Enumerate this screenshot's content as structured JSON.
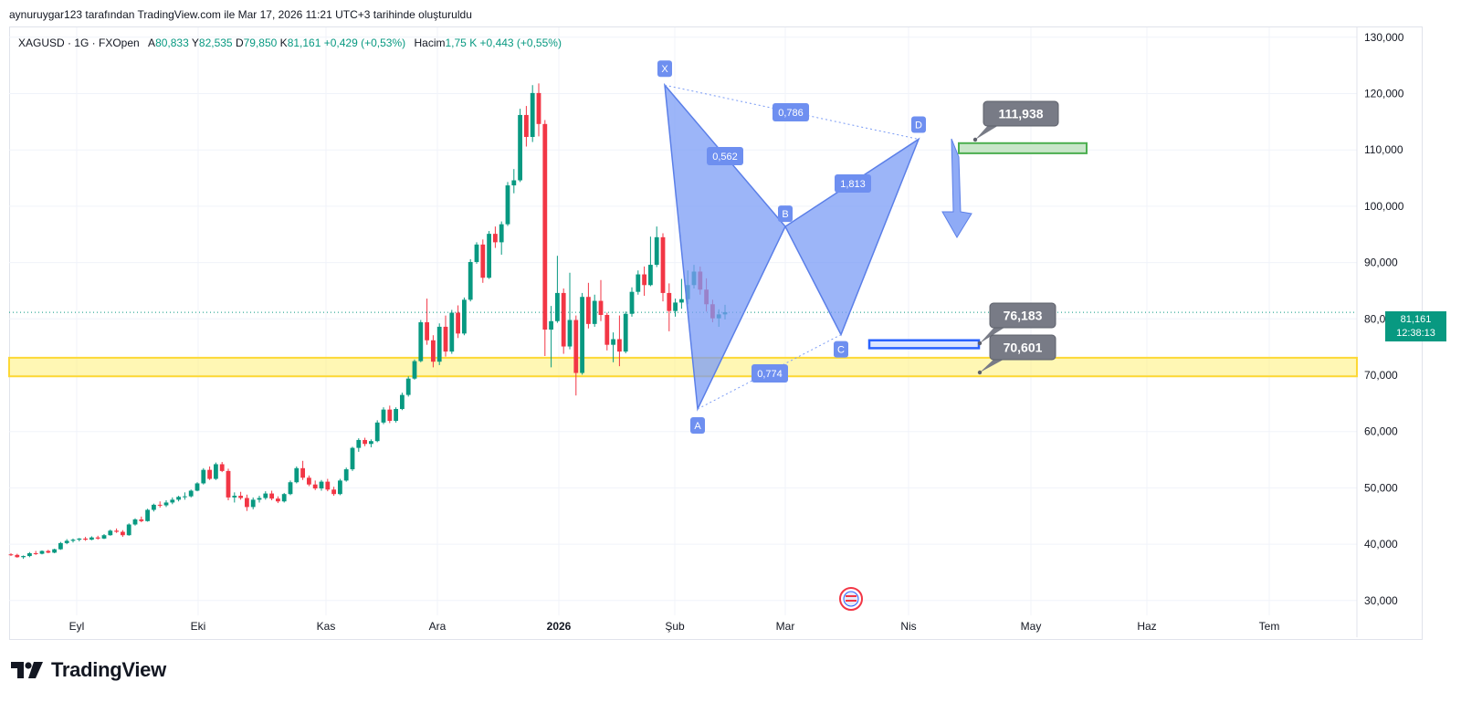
{
  "attribution": "aynuruygar123 tarafından TradingView.com ile Mar 17, 2026 11:21 UTC+3 tarihinde oluşturuldu",
  "legend": {
    "symbol": "XAGUSD · 1G · FXOpen",
    "open_label": "A",
    "open": "80,833",
    "high_label": "Y",
    "high": "82,535",
    "low_label": "D",
    "low": "79,850",
    "close_label": "K",
    "close": "81,161",
    "change": "+0,429 (+0,53%)",
    "volume_label": "Hacim",
    "volume": "1,75 K",
    "volume_change": "+0,443 (+0,55%)"
  },
  "last_price": {
    "value": "81,161",
    "countdown": "12:38:13"
  },
  "brand": "TradingView",
  "colors": {
    "up": "#089981",
    "down": "#f23645",
    "pattern": "#7b9cf5",
    "support_zone": "#fff176",
    "target_zone": "#c8e6c9",
    "price_badge": "#089981"
  },
  "chart_data": {
    "type": "candlestick",
    "title": "XAGUSD · 1G · FXOpen",
    "ylim": [
      27,
      132
    ],
    "y_ticks": [
      "130,000",
      "120,000",
      "110,000",
      "100,000",
      "90,000",
      "80,000",
      "70,000",
      "60,000",
      "50,000",
      "40,000",
      "30,000"
    ],
    "y_tick_values": [
      130,
      120,
      110,
      100,
      90,
      80,
      70,
      60,
      50,
      40,
      30
    ],
    "x_labels": [
      "Eyl",
      "Eki",
      "Kas",
      "Ara",
      "2026",
      "Şub",
      "Mar",
      "Nis",
      "May",
      "Haz",
      "Tem"
    ],
    "x_label_bold": [
      "2026"
    ],
    "candles": [
      [
        38.2,
        38.4,
        37.9,
        38.1
      ],
      [
        38.1,
        38.3,
        37.6,
        37.7
      ],
      [
        37.7,
        38.0,
        37.4,
        37.9
      ],
      [
        37.9,
        38.6,
        37.7,
        38.4
      ],
      [
        38.4,
        38.8,
        38.1,
        38.3
      ],
      [
        38.3,
        38.9,
        38.2,
        38.8
      ],
      [
        38.8,
        39.0,
        38.4,
        38.5
      ],
      [
        38.5,
        39.2,
        38.4,
        39.1
      ],
      [
        39.1,
        40.4,
        39.0,
        40.2
      ],
      [
        40.2,
        40.9,
        40.0,
        40.6
      ],
      [
        40.6,
        41.0,
        40.3,
        40.8
      ],
      [
        40.8,
        41.1,
        40.5,
        41.0
      ],
      [
        41.0,
        41.3,
        40.6,
        40.8
      ],
      [
        40.8,
        41.4,
        40.7,
        41.2
      ],
      [
        41.2,
        41.5,
        40.8,
        41.0
      ],
      [
        41.0,
        41.8,
        40.9,
        41.6
      ],
      [
        41.6,
        42.6,
        41.5,
        42.4
      ],
      [
        42.4,
        42.8,
        42.0,
        42.2
      ],
      [
        42.2,
        42.5,
        41.3,
        41.6
      ],
      [
        41.6,
        43.7,
        41.5,
        43.5
      ],
      [
        43.5,
        44.6,
        43.3,
        44.4
      ],
      [
        44.4,
        44.9,
        43.9,
        44.1
      ],
      [
        44.1,
        46.3,
        44.0,
        46.1
      ],
      [
        46.1,
        47.2,
        45.8,
        47.0
      ],
      [
        47.0,
        47.6,
        46.5,
        46.9
      ],
      [
        46.9,
        47.8,
        46.6,
        47.4
      ],
      [
        47.4,
        48.3,
        47.1,
        47.9
      ],
      [
        47.9,
        48.6,
        47.6,
        48.4
      ],
      [
        48.4,
        49.2,
        47.9,
        48.5
      ],
      [
        48.5,
        49.7,
        48.3,
        49.5
      ],
      [
        49.5,
        51.0,
        49.4,
        50.8
      ],
      [
        50.8,
        53.5,
        50.6,
        53.2
      ],
      [
        53.2,
        53.8,
        51.4,
        51.6
      ],
      [
        51.6,
        54.5,
        51.4,
        54.2
      ],
      [
        54.2,
        54.6,
        52.8,
        53.0
      ],
      [
        53.0,
        53.4,
        47.8,
        48.3
      ],
      [
        48.3,
        49.2,
        47.4,
        48.6
      ],
      [
        48.6,
        49.3,
        47.9,
        48.2
      ],
      [
        48.2,
        48.8,
        45.9,
        46.6
      ],
      [
        46.6,
        48.3,
        46.2,
        47.9
      ],
      [
        47.9,
        48.6,
        47.4,
        48.2
      ],
      [
        48.2,
        49.4,
        47.9,
        49.0
      ],
      [
        49.0,
        49.5,
        47.8,
        48.1
      ],
      [
        48.1,
        48.5,
        47.3,
        47.6
      ],
      [
        47.6,
        49.1,
        47.4,
        48.9
      ],
      [
        48.9,
        51.3,
        48.7,
        51.0
      ],
      [
        51.0,
        53.8,
        50.8,
        53.5
      ],
      [
        53.5,
        54.8,
        51.4,
        51.8
      ],
      [
        51.8,
        52.2,
        50.3,
        50.6
      ],
      [
        50.6,
        51.3,
        49.6,
        49.9
      ],
      [
        49.9,
        51.4,
        49.5,
        51.1
      ],
      [
        51.1,
        51.6,
        49.4,
        49.7
      ],
      [
        49.7,
        50.2,
        48.6,
        48.9
      ],
      [
        48.9,
        51.6,
        48.7,
        51.3
      ],
      [
        51.3,
        53.6,
        51.1,
        53.3
      ],
      [
        53.3,
        57.3,
        53.0,
        57.1
      ],
      [
        57.1,
        58.8,
        56.4,
        58.5
      ],
      [
        58.5,
        58.9,
        57.4,
        57.8
      ],
      [
        57.8,
        58.6,
        57.2,
        58.3
      ],
      [
        58.3,
        62.0,
        58.1,
        61.6
      ],
      [
        61.6,
        64.3,
        61.3,
        63.9
      ],
      [
        63.9,
        64.6,
        61.5,
        61.9
      ],
      [
        61.9,
        64.3,
        61.6,
        64.0
      ],
      [
        64.0,
        66.9,
        63.8,
        66.5
      ],
      [
        66.5,
        69.8,
        66.2,
        69.4
      ],
      [
        69.4,
        72.8,
        69.2,
        72.5
      ],
      [
        72.5,
        79.8,
        72.3,
        79.4
      ],
      [
        79.4,
        83.6,
        75.4,
        76.2
      ],
      [
        76.2,
        77.1,
        71.4,
        72.4
      ],
      [
        72.4,
        79.2,
        71.8,
        78.6
      ],
      [
        78.6,
        80.6,
        73.3,
        74.2
      ],
      [
        74.2,
        81.6,
        73.8,
        81.1
      ],
      [
        81.1,
        82.4,
        76.6,
        77.4
      ],
      [
        77.4,
        83.8,
        77.1,
        83.4
      ],
      [
        83.4,
        90.6,
        83.1,
        90.1
      ],
      [
        90.1,
        93.6,
        89.8,
        93.2
      ],
      [
        93.2,
        94.1,
        86.4,
        87.3
      ],
      [
        87.3,
        95.6,
        87.1,
        95.1
      ],
      [
        95.1,
        96.4,
        92.6,
        93.6
      ],
      [
        93.6,
        97.3,
        91.4,
        96.8
      ],
      [
        96.8,
        104.3,
        96.5,
        103.7
      ],
      [
        103.7,
        106.6,
        102.3,
        104.6
      ],
      [
        104.6,
        117.3,
        104.3,
        116.2
      ],
      [
        116.2,
        117.8,
        110.6,
        112.3
      ],
      [
        112.3,
        121.5,
        111.4,
        120.1
      ],
      [
        120.1,
        121.8,
        112.4,
        114.6
      ],
      [
        114.6,
        115.3,
        73.4,
        78.1
      ],
      [
        78.1,
        82.3,
        71.4,
        79.6
      ],
      [
        79.6,
        91.2,
        79.3,
        84.6
      ],
      [
        84.6,
        85.4,
        73.8,
        75.1
      ],
      [
        75.1,
        88.2,
        74.6,
        79.8
      ],
      [
        79.8,
        80.6,
        66.4,
        70.4
      ],
      [
        70.4,
        84.6,
        70.1,
        83.9
      ],
      [
        83.9,
        86.4,
        78.3,
        79.1
      ],
      [
        79.1,
        84.3,
        78.6,
        83.2
      ],
      [
        83.2,
        86.9,
        79.6,
        80.7
      ],
      [
        80.7,
        81.1,
        74.4,
        75.4
      ],
      [
        75.4,
        77.6,
        72.3,
        76.4
      ],
      [
        76.4,
        80.6,
        71.6,
        74.2
      ],
      [
        74.2,
        81.3,
        73.9,
        80.9
      ],
      [
        80.9,
        85.6,
        80.4,
        84.8
      ],
      [
        84.8,
        88.6,
        84.3,
        87.9
      ],
      [
        87.9,
        89.3,
        84.1,
        86.0
      ],
      [
        86.0,
        94.6,
        85.8,
        89.6
      ],
      [
        89.6,
        96.4,
        89.2,
        94.5
      ],
      [
        94.5,
        95.2,
        83.1,
        84.6
      ],
      [
        84.6,
        86.3,
        77.8,
        81.4
      ],
      [
        81.4,
        83.6,
        80.4,
        82.9
      ],
      [
        82.9,
        87.1,
        81.8,
        83.5
      ],
      [
        83.5,
        88.6,
        82.6,
        86.0
      ],
      [
        86.0,
        89.6,
        85.4,
        88.4
      ],
      [
        88.4,
        89.3,
        84.3,
        85.2
      ],
      [
        85.2,
        87.2,
        81.3,
        82.6
      ],
      [
        82.6,
        83.4,
        79.4,
        80.1
      ],
      [
        80.1,
        81.7,
        78.6,
        80.8
      ],
      [
        80.8,
        82.5,
        79.9,
        81.2
      ]
    ],
    "harmonic_pattern": {
      "points": [
        {
          "label": "X",
          "value": 121.5
        },
        {
          "label": "A",
          "value": 64.0
        },
        {
          "label": "B",
          "value": 96.4
        },
        {
          "label": "C",
          "value": 77.2
        },
        {
          "label": "D",
          "value": 111.9
        }
      ],
      "ratios": [
        "0,562",
        "0,774",
        "1,813",
        "0,786"
      ]
    },
    "annotations": [
      "111,938",
      "76,183",
      "70,601"
    ],
    "support_zone": [
      69.8,
      73.1
    ],
    "target_zone": [
      109.4,
      111.2
    ],
    "entry_zone": [
      74.8,
      76.2
    ],
    "last_price": 81.161
  }
}
